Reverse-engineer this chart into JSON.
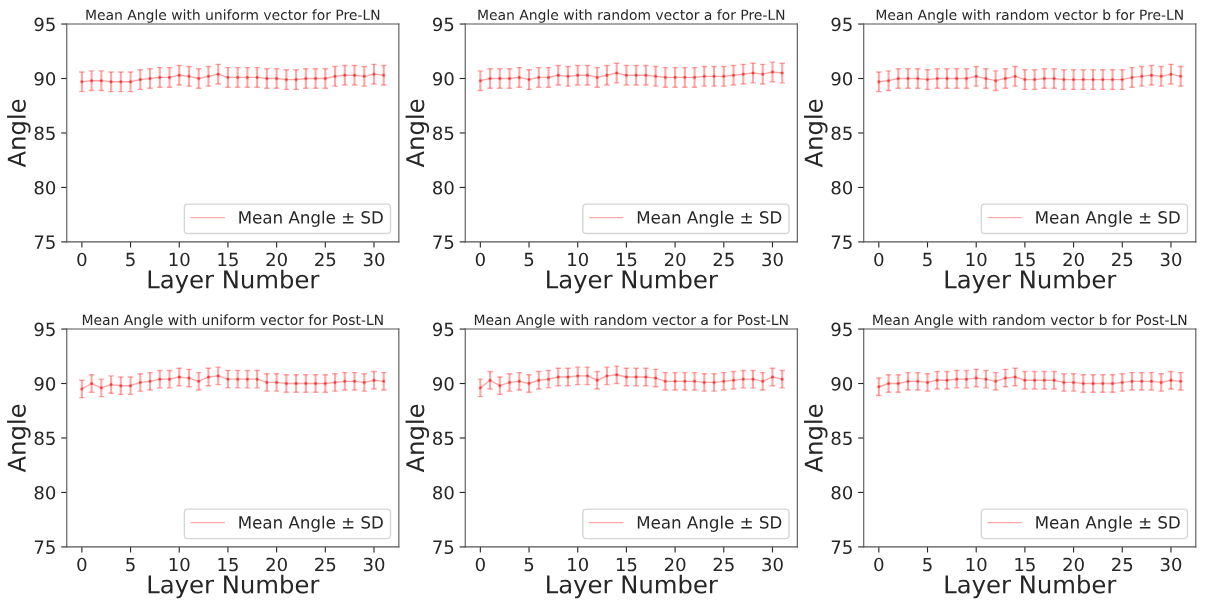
{
  "chart_data": [
    {
      "type": "line",
      "title": "Mean Angle with uniform vector for Pre-LN",
      "xlabel": "Layer Number",
      "ylabel": "Angle",
      "xlim": [
        -1.55,
        32.55
      ],
      "xticks": [
        0,
        5,
        10,
        15,
        20,
        25,
        30
      ],
      "ylim": [
        75,
        95
      ],
      "yticks": [
        75,
        80,
        85,
        90,
        95
      ],
      "legend": "bottom right",
      "grid": false,
      "marker": "circle",
      "line_style": "solid",
      "x": [
        0,
        1,
        2,
        3,
        4,
        5,
        6,
        7,
        8,
        9,
        10,
        11,
        12,
        13,
        14,
        15,
        16,
        17,
        18,
        19,
        20,
        21,
        22,
        23,
        24,
        25,
        26,
        27,
        28,
        29,
        30,
        31
      ],
      "series": [
        {
          "name": "Mean Angle ± SD",
          "color": "#ff0000",
          "values": [
            89.7,
            89.8,
            89.8,
            89.7,
            89.7,
            89.7,
            89.9,
            90.0,
            90.1,
            90.1,
            90.3,
            90.2,
            90.0,
            90.2,
            90.4,
            90.1,
            90.1,
            90.1,
            90.1,
            90.0,
            90.0,
            89.9,
            89.9,
            90.0,
            90.0,
            90.0,
            90.2,
            90.3,
            90.3,
            90.2,
            90.4,
            90.3
          ],
          "errors": [
            0.9,
            0.9,
            0.9,
            0.9,
            0.9,
            0.9,
            0.9,
            0.9,
            0.9,
            0.9,
            0.9,
            0.9,
            0.9,
            0.9,
            0.9,
            0.9,
            0.9,
            0.9,
            0.9,
            0.9,
            0.9,
            0.9,
            0.9,
            0.9,
            0.9,
            0.9,
            0.9,
            0.9,
            0.9,
            0.9,
            0.9,
            0.9
          ]
        }
      ]
    },
    {
      "type": "line",
      "title": "Mean Angle with random vector a for Pre-LN",
      "xlabel": "Layer Number",
      "ylabel": "Angle",
      "xlim": [
        -1.55,
        32.55
      ],
      "xticks": [
        0,
        5,
        10,
        15,
        20,
        25,
        30
      ],
      "ylim": [
        75,
        95
      ],
      "yticks": [
        75,
        80,
        85,
        90,
        95
      ],
      "legend": "bottom right",
      "grid": false,
      "marker": "circle",
      "line_style": "solid",
      "x": [
        0,
        1,
        2,
        3,
        4,
        5,
        6,
        7,
        8,
        9,
        10,
        11,
        12,
        13,
        14,
        15,
        16,
        17,
        18,
        19,
        20,
        21,
        22,
        23,
        24,
        25,
        26,
        27,
        28,
        29,
        30,
        31
      ],
      "series": [
        {
          "name": "Mean Angle ± SD",
          "color": "#ff0000",
          "values": [
            89.8,
            90.0,
            90.0,
            90.0,
            90.1,
            89.9,
            90.1,
            90.1,
            90.3,
            90.2,
            90.3,
            90.3,
            90.1,
            90.3,
            90.5,
            90.3,
            90.3,
            90.3,
            90.2,
            90.1,
            90.1,
            90.1,
            90.1,
            90.2,
            90.2,
            90.2,
            90.3,
            90.4,
            90.5,
            90.4,
            90.6,
            90.5
          ],
          "errors": [
            0.9,
            0.9,
            0.9,
            0.9,
            0.9,
            0.9,
            0.9,
            0.9,
            0.9,
            0.9,
            0.9,
            0.9,
            0.9,
            0.9,
            0.9,
            0.9,
            0.9,
            0.9,
            0.9,
            0.9,
            0.9,
            0.9,
            0.9,
            0.9,
            0.9,
            0.9,
            0.9,
            0.9,
            0.9,
            0.9,
            0.9,
            0.9
          ]
        }
      ]
    },
    {
      "type": "line",
      "title": "Mean Angle with random vector b for Pre-LN",
      "xlabel": "Layer Number",
      "ylabel": "Angle",
      "xlim": [
        -1.55,
        32.55
      ],
      "xticks": [
        0,
        5,
        10,
        15,
        20,
        25,
        30
      ],
      "ylim": [
        75,
        95
      ],
      "yticks": [
        75,
        80,
        85,
        90,
        95
      ],
      "legend": "bottom right",
      "grid": false,
      "marker": "circle",
      "line_style": "solid",
      "x": [
        0,
        1,
        2,
        3,
        4,
        5,
        6,
        7,
        8,
        9,
        10,
        11,
        12,
        13,
        14,
        15,
        16,
        17,
        18,
        19,
        20,
        21,
        22,
        23,
        24,
        25,
        26,
        27,
        28,
        29,
        30,
        31
      ],
      "series": [
        {
          "name": "Mean Angle ± SD",
          "color": "#ff0000",
          "values": [
            89.7,
            89.8,
            90.0,
            90.0,
            90.0,
            89.9,
            90.0,
            90.0,
            90.0,
            90.0,
            90.2,
            90.0,
            89.8,
            90.0,
            90.2,
            89.9,
            89.9,
            90.0,
            90.0,
            89.9,
            89.9,
            89.9,
            89.9,
            89.9,
            89.9,
            89.9,
            90.1,
            90.2,
            90.3,
            90.2,
            90.4,
            90.2
          ],
          "errors": [
            0.9,
            0.9,
            0.9,
            0.9,
            0.9,
            0.9,
            0.9,
            0.9,
            0.9,
            0.9,
            0.9,
            0.9,
            0.9,
            0.9,
            0.9,
            0.9,
            0.9,
            0.9,
            0.9,
            0.9,
            0.9,
            0.9,
            0.9,
            0.9,
            0.9,
            0.9,
            0.9,
            0.9,
            0.9,
            0.9,
            0.9,
            0.9
          ]
        }
      ]
    },
    {
      "type": "line",
      "title": "Mean Angle with uniform vector for Post-LN",
      "xlabel": "Layer Number",
      "ylabel": "Angle",
      "xlim": [
        -1.55,
        32.55
      ],
      "xticks": [
        0,
        5,
        10,
        15,
        20,
        25,
        30
      ],
      "ylim": [
        75,
        95
      ],
      "yticks": [
        75,
        80,
        85,
        90,
        95
      ],
      "legend": "bottom right",
      "grid": false,
      "marker": "circle",
      "line_style": "solid",
      "x": [
        0,
        1,
        2,
        3,
        4,
        5,
        6,
        7,
        8,
        9,
        10,
        11,
        12,
        13,
        14,
        15,
        16,
        17,
        18,
        19,
        20,
        21,
        22,
        23,
        24,
        25,
        26,
        27,
        28,
        29,
        30,
        31
      ],
      "series": [
        {
          "name": "Mean Angle ± SD",
          "color": "#ff0000",
          "values": [
            89.5,
            90.0,
            89.6,
            89.9,
            89.8,
            89.8,
            90.1,
            90.2,
            90.4,
            90.4,
            90.6,
            90.5,
            90.2,
            90.6,
            90.7,
            90.4,
            90.4,
            90.4,
            90.4,
            90.1,
            90.1,
            90.0,
            90.0,
            90.0,
            90.0,
            90.0,
            90.1,
            90.2,
            90.2,
            90.1,
            90.3,
            90.2
          ],
          "errors": [
            0.8,
            0.8,
            0.8,
            0.8,
            0.8,
            0.8,
            0.8,
            0.8,
            0.8,
            0.8,
            0.8,
            0.8,
            0.8,
            0.8,
            0.8,
            0.8,
            0.8,
            0.8,
            0.8,
            0.8,
            0.8,
            0.8,
            0.8,
            0.8,
            0.8,
            0.8,
            0.8,
            0.8,
            0.8,
            0.8,
            0.8,
            0.8
          ]
        }
      ]
    },
    {
      "type": "line",
      "title": "Mean Angle with random vector a for Post-LN",
      "xlabel": "Layer Number",
      "ylabel": "Angle",
      "xlim": [
        -1.55,
        32.55
      ],
      "xticks": [
        0,
        5,
        10,
        15,
        20,
        25,
        30
      ],
      "ylim": [
        75,
        95
      ],
      "yticks": [
        75,
        80,
        85,
        90,
        95
      ],
      "legend": "bottom right",
      "grid": false,
      "marker": "circle",
      "line_style": "solid",
      "x": [
        0,
        1,
        2,
        3,
        4,
        5,
        6,
        7,
        8,
        9,
        10,
        11,
        12,
        13,
        14,
        15,
        16,
        17,
        18,
        19,
        20,
        21,
        22,
        23,
        24,
        25,
        26,
        27,
        28,
        29,
        30,
        31
      ],
      "series": [
        {
          "name": "Mean Angle ± SD",
          "color": "#ff0000",
          "values": [
            89.6,
            90.3,
            89.8,
            90.1,
            90.2,
            90.0,
            90.3,
            90.4,
            90.6,
            90.6,
            90.7,
            90.7,
            90.3,
            90.7,
            90.8,
            90.6,
            90.6,
            90.6,
            90.5,
            90.2,
            90.2,
            90.2,
            90.2,
            90.1,
            90.1,
            90.2,
            90.3,
            90.4,
            90.4,
            90.2,
            90.6,
            90.4
          ],
          "errors": [
            0.8,
            0.8,
            0.8,
            0.8,
            0.8,
            0.8,
            0.8,
            0.8,
            0.8,
            0.8,
            0.8,
            0.8,
            0.8,
            0.8,
            0.8,
            0.8,
            0.8,
            0.8,
            0.8,
            0.8,
            0.8,
            0.8,
            0.8,
            0.8,
            0.8,
            0.8,
            0.8,
            0.8,
            0.8,
            0.8,
            0.8,
            0.8
          ]
        }
      ]
    },
    {
      "type": "line",
      "title": "Mean Angle with random vector b for Post-LN",
      "xlabel": "Layer Number",
      "ylabel": "Angle",
      "xlim": [
        -1.55,
        32.55
      ],
      "xticks": [
        0,
        5,
        10,
        15,
        20,
        25,
        30
      ],
      "ylim": [
        75,
        95
      ],
      "yticks": [
        75,
        80,
        85,
        90,
        95
      ],
      "legend": "bottom right",
      "grid": false,
      "marker": "circle",
      "line_style": "solid",
      "x": [
        0,
        1,
        2,
        3,
        4,
        5,
        6,
        7,
        8,
        9,
        10,
        11,
        12,
        13,
        14,
        15,
        16,
        17,
        18,
        19,
        20,
        21,
        22,
        23,
        24,
        25,
        26,
        27,
        28,
        29,
        30,
        31
      ],
      "series": [
        {
          "name": "Mean Angle ± SD",
          "color": "#ff0000",
          "values": [
            89.7,
            90.0,
            90.0,
            90.2,
            90.2,
            90.1,
            90.3,
            90.3,
            90.4,
            90.4,
            90.5,
            90.4,
            90.2,
            90.5,
            90.6,
            90.3,
            90.3,
            90.3,
            90.3,
            90.1,
            90.1,
            90.0,
            90.0,
            90.0,
            90.0,
            90.1,
            90.2,
            90.2,
            90.2,
            90.1,
            90.3,
            90.2
          ],
          "errors": [
            0.8,
            0.8,
            0.8,
            0.8,
            0.8,
            0.8,
            0.8,
            0.8,
            0.8,
            0.8,
            0.8,
            0.8,
            0.8,
            0.8,
            0.8,
            0.8,
            0.8,
            0.8,
            0.8,
            0.8,
            0.8,
            0.8,
            0.8,
            0.8,
            0.8,
            0.8,
            0.8,
            0.8,
            0.8,
            0.8,
            0.8,
            0.8
          ]
        }
      ]
    }
  ]
}
